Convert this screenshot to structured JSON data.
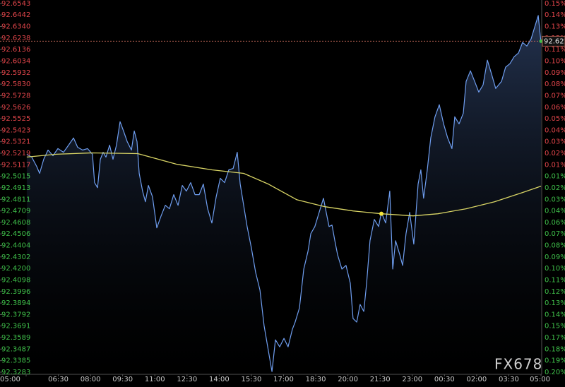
{
  "chart_data": {
    "type": "line",
    "xlim": [
      0,
      24
    ],
    "xticks": [
      {
        "value": 0,
        "label": "05:00"
      },
      {
        "value": 1.5,
        "label": "06:30"
      },
      {
        "value": 3,
        "label": "08:00"
      },
      {
        "value": 4.5,
        "label": "09:30"
      },
      {
        "value": 6,
        "label": "11:00"
      },
      {
        "value": 7.5,
        "label": "12:30"
      },
      {
        "value": 9,
        "label": "14:00"
      },
      {
        "value": 10.5,
        "label": "15:30"
      },
      {
        "value": 12,
        "label": "17:00"
      },
      {
        "value": 13.5,
        "label": "18:30"
      },
      {
        "value": 15,
        "label": "20:00"
      },
      {
        "value": 16.5,
        "label": "21:30"
      },
      {
        "value": 18,
        "label": "23:00"
      },
      {
        "value": 19.5,
        "label": "00:30"
      },
      {
        "value": 21,
        "label": "02:00"
      },
      {
        "value": 22.5,
        "label": "03:30"
      },
      {
        "value": 24,
        "label": "05:00"
      }
    ],
    "ylim": [
      92.3283,
      92.6543
    ],
    "yticks": [
      92.6543,
      92.6442,
      {
        "value": 92.634,
        "label": "92.6340"
      },
      92.6238,
      92.6136,
      92.6034,
      92.5932,
      {
        "value": 92.583,
        "label": "92.5830"
      },
      92.5728,
      92.5626,
      92.5525,
      92.5423,
      92.5321,
      92.5219,
      92.5117,
      92.5015,
      92.4913,
      92.4811,
      92.4709,
      92.4608,
      92.4506,
      92.4404,
      92.4302,
      {
        "value": 92.42,
        "label": "92.4200"
      },
      92.4098,
      92.3996,
      92.3894,
      92.3792,
      92.3691,
      92.3589,
      92.3487,
      92.3385,
      92.3283
    ],
    "y2ticks": [
      {
        "value": 0.15,
        "label": "0.15%"
      },
      {
        "value": 0.14,
        "label": "0.14%"
      },
      {
        "value": 0.13,
        "label": "0.13%"
      },
      {
        "value": 0.12,
        "label": "0.12%"
      },
      {
        "value": 0.11,
        "label": "0.11%"
      },
      {
        "value": 0.1,
        "label": "0.10%"
      },
      {
        "value": 0.09,
        "label": "0.09%"
      },
      {
        "value": 0.08,
        "label": "0.08%"
      },
      {
        "value": 0.07,
        "label": "0.07%"
      },
      {
        "value": 0.06,
        "label": "0.06%"
      },
      {
        "value": 0.05,
        "label": "0.05%"
      },
      {
        "value": 0.04,
        "label": "0.04%"
      },
      {
        "value": 0.03,
        "label": "0.03%"
      },
      {
        "value": 0.02,
        "label": "0.02%"
      },
      {
        "value": 0.01,
        "label": "0.01%"
      },
      {
        "value": -0.01,
        "label": "0.01%"
      },
      {
        "value": -0.02,
        "label": "0.02%"
      },
      {
        "value": -0.03,
        "label": "0.03%"
      },
      {
        "value": -0.04,
        "label": "0.04%"
      },
      {
        "value": -0.06,
        "label": "0.06%"
      },
      {
        "value": -0.07,
        "label": "0.07%"
      },
      {
        "value": -0.08,
        "label": "0.08%"
      },
      {
        "value": -0.09,
        "label": "0.09%"
      },
      {
        "value": -0.1,
        "label": "0.10%"
      },
      {
        "value": -0.11,
        "label": "0.11%"
      },
      {
        "value": -0.12,
        "label": "0.12%"
      },
      {
        "value": -0.13,
        "label": "0.13%"
      },
      {
        "value": -0.14,
        "label": "0.14%"
      },
      {
        "value": -0.15,
        "label": "0.15%"
      },
      {
        "value": -0.17,
        "label": "0.17%"
      },
      {
        "value": -0.18,
        "label": "0.18%"
      },
      {
        "value": -0.19,
        "label": "0.19%"
      },
      {
        "value": -0.2,
        "label": "0.20%"
      }
    ],
    "up_color": "#e0454a",
    "down_color": "#3fbf4a",
    "series": [
      {
        "color": "#6f9ef0",
        "x": [
          0.03,
          0.26,
          0.49,
          0.63,
          0.82,
          1.02,
          1.25,
          1.48,
          1.74,
          1.98,
          2.21,
          2.4,
          2.63,
          2.86,
          3.09,
          3.19,
          3.33,
          3.46,
          3.59,
          3.72,
          3.89,
          4.05,
          4.21,
          4.38,
          4.54,
          4.71,
          4.91,
          5.04,
          5.17,
          5.27,
          5.43,
          5.56,
          5.7,
          5.89,
          6.09,
          6.29,
          6.49,
          6.68,
          6.88,
          7.08,
          7.28,
          7.47,
          7.67,
          7.87,
          8.07,
          8.26,
          8.46,
          8.66,
          8.86,
          9.05,
          9.25,
          9.45,
          9.65,
          9.84,
          9.98,
          10.14,
          10.3,
          10.5,
          10.7,
          10.9,
          11.09,
          11.29,
          11.46,
          11.62,
          11.82,
          12.02,
          12.21,
          12.41,
          12.54,
          12.74,
          12.94,
          13.14,
          13.27,
          13.46,
          13.66,
          13.86,
          13.99,
          14.12,
          14.26,
          14.39,
          14.52,
          14.72,
          14.91,
          15.11,
          15.24,
          15.41,
          15.57,
          15.74,
          15.87,
          16.03,
          16.23,
          16.43,
          16.56,
          16.76,
          16.95,
          17.09,
          17.22,
          17.42,
          17.55,
          17.71,
          17.88,
          18.07,
          18.27,
          18.4,
          18.53,
          18.7,
          18.86,
          19.06,
          19.26,
          19.46,
          19.65,
          19.85,
          19.98,
          20.18,
          20.38,
          20.51,
          20.71,
          20.91,
          21.1,
          21.3,
          21.5,
          21.7,
          21.89,
          22.16,
          22.35,
          22.55,
          22.75,
          22.95,
          23.14,
          23.34,
          23.54,
          23.74,
          23.87,
          24.0
        ],
        "values": [
          92.521,
          92.5185,
          92.5103,
          92.5041,
          92.5166,
          92.5247,
          92.5197,
          92.526,
          92.5228,
          92.5291,
          92.5354,
          92.5272,
          92.5247,
          92.526,
          92.521,
          92.4959,
          92.4915,
          92.5166,
          92.5228,
          92.5185,
          92.5291,
          92.5166,
          92.5291,
          92.5498,
          92.5416,
          92.5322,
          92.5247,
          92.5416,
          92.5322,
          92.5041,
          92.4884,
          92.479,
          92.4934,
          92.4834,
          92.4559,
          92.4665,
          92.4759,
          92.4728,
          92.4853,
          92.4759,
          92.4934,
          92.4884,
          92.4959,
          92.4853,
          92.4853,
          92.4947,
          92.4728,
          92.4602,
          92.4834,
          92.4997,
          92.4959,
          92.5072,
          92.5084,
          92.5228,
          92.4947,
          92.4759,
          92.4571,
          92.4383,
          92.4164,
          92.4008,
          92.3695,
          92.3476,
          92.3288,
          92.3569,
          92.3507,
          92.3582,
          92.3507,
          92.3663,
          92.3726,
          92.3851,
          92.4195,
          92.4352,
          92.4508,
          92.4571,
          92.4696,
          92.4821,
          92.4696,
          92.4571,
          92.4584,
          92.4446,
          92.4321,
          92.4195,
          92.4227,
          92.407,
          92.3757,
          92.3726,
          92.3882,
          92.382,
          92.407,
          92.4446,
          92.4634,
          92.4571,
          92.4696,
          92.4602,
          92.4884,
          92.4195,
          92.4446,
          92.4321,
          92.4227,
          92.4508,
          92.4696,
          92.4415,
          92.4947,
          92.5072,
          92.4821,
          92.5072,
          92.5354,
          92.5541,
          92.5648,
          92.5479,
          92.5354,
          92.526,
          92.5541,
          92.5479,
          92.5573,
          92.5854,
          92.5948,
          92.5854,
          92.576,
          92.5823,
          92.6042,
          92.5917,
          92.5792,
          92.5854,
          92.598,
          92.6011,
          92.6073,
          92.6105,
          92.6199,
          92.6167,
          92.623,
          92.6355,
          92.6437,
          92.6199
        ]
      },
      {
        "color": "#d8d465",
        "x": [
          0.03,
          1.42,
          3.06,
          5.2,
          7.01,
          8.66,
          10.14,
          11.29,
          12.61,
          13.93,
          15.24,
          16.56,
          18.04,
          19.19,
          20.51,
          21.83,
          23.14,
          24.0
        ],
        "values": [
          92.5185,
          92.521,
          92.5222,
          92.5216,
          92.5122,
          92.5072,
          92.5041,
          92.4947,
          92.4809,
          92.4746,
          92.4709,
          92.4684,
          92.4665,
          92.4684,
          92.4728,
          92.479,
          92.4872,
          92.4928
        ]
      }
    ],
    "last_price": 92.621,
    "watermark": "FX678"
  }
}
